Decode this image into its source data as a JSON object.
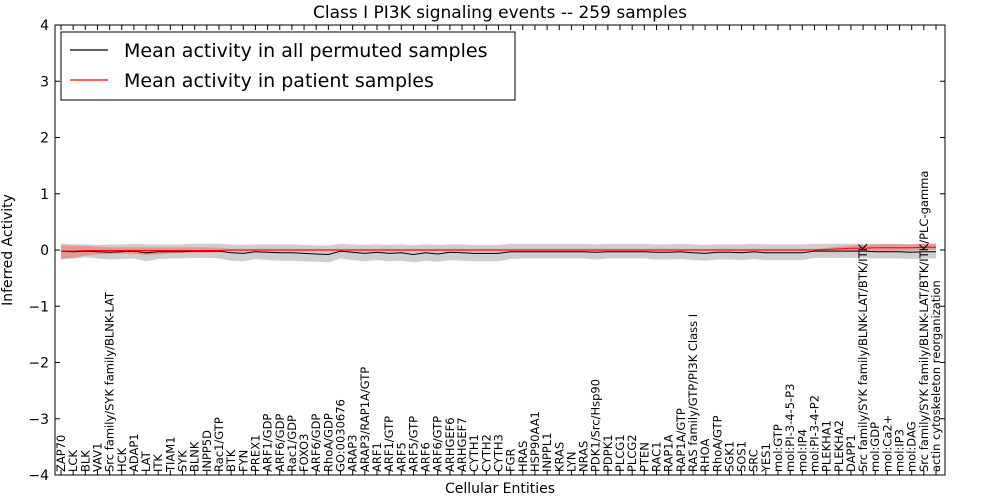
{
  "chart_data": {
    "type": "line",
    "title": "Class I PI3K signaling events -- 259 samples",
    "xlabel": "Cellular Entities",
    "ylabel": "Inferred Activity",
    "ylim": [
      -4,
      4
    ],
    "yticks": [
      -4,
      -3,
      -2,
      -1,
      0,
      1,
      2,
      3,
      4
    ],
    "ytick_labels": [
      "−4",
      "−3",
      "−2",
      "−1",
      "0",
      "1",
      "2",
      "3",
      "4"
    ],
    "grid": false,
    "legend_position": "top-left",
    "categories": [
      "ZAP70",
      "LCK",
      "BLK",
      "VAV1",
      "Src family/SYK family/BLNK-LAT",
      "HCK",
      "ADAP1",
      "LAT",
      "ITK",
      "TIAM1",
      "SYK",
      "BLNK",
      "INPP5D",
      "Rac1/GTP",
      "BTK",
      "FYN",
      "PREX1",
      "ARF1/GDP",
      "ARF6/GDP",
      "Rac1/GDP",
      "FOXO3",
      "ARF6/GDP",
      "RhoA/GDP",
      "GO:0030676",
      "ARAP3",
      "ARAP3/RAP1A/GTP",
      "ARF1",
      "ARF1/GTP",
      "ARF5",
      "ARF5/GTP",
      "ARF6",
      "ARF6/GTP",
      "ARHGEF6",
      "ARHGEF7",
      "CYTH1",
      "CYTH2",
      "CYTH3",
      "FGR",
      "HRAS",
      "HSP90AA1",
      "INPPL1",
      "KRAS",
      "LYN",
      "NRAS",
      "PDK1/Src/Hsp90",
      "PDPK1",
      "PLCG1",
      "PLCG2",
      "PTEN",
      "RAC1",
      "RAP1A",
      "RAP1A/GTP",
      "RAS family/GTP/PI3K Class I",
      "RHOA",
      "RhoA/GTP",
      "SGK1",
      "SOS1",
      "SRC",
      "YES1",
      "mol:GTP",
      "mol:PI-3-4-5-P3",
      "mol:IP4",
      "mol:PI-3-4-P2",
      "PLEKHA1",
      "PLEKHA2",
      "DAPP1",
      "Src family/SYK family/BLNK-LAT/BTK/ITK",
      "mol:GDP",
      "mol:Ca2+",
      "mol:IP3",
      "mol:DAG",
      "Src family/SYK family/BLNK-LAT/BTK/ITK/PLC-gamma",
      "actin cytoskeleton reorganization"
    ],
    "series": [
      {
        "name": "Mean activity in all permuted samples",
        "color": "#000000",
        "band_color": "#b3b3b3",
        "values": [
          -0.02,
          -0.03,
          -0.02,
          -0.03,
          -0.04,
          -0.03,
          -0.02,
          -0.05,
          -0.03,
          -0.03,
          -0.03,
          -0.02,
          -0.02,
          -0.02,
          -0.05,
          -0.06,
          -0.03,
          -0.04,
          -0.05,
          -0.05,
          -0.06,
          -0.07,
          -0.08,
          -0.02,
          -0.04,
          -0.06,
          -0.04,
          -0.06,
          -0.05,
          -0.08,
          -0.05,
          -0.07,
          -0.04,
          -0.05,
          -0.06,
          -0.06,
          -0.06,
          -0.03,
          -0.03,
          -0.03,
          -0.03,
          -0.03,
          -0.03,
          -0.03,
          -0.04,
          -0.03,
          -0.03,
          -0.03,
          -0.03,
          -0.04,
          -0.04,
          -0.03,
          -0.05,
          -0.06,
          -0.04,
          -0.04,
          -0.05,
          -0.03,
          -0.05,
          -0.05,
          -0.05,
          -0.05,
          -0.02,
          -0.02,
          -0.02,
          -0.02,
          -0.02,
          -0.03,
          -0.03,
          -0.03,
          -0.04,
          -0.03,
          -0.03
        ],
        "lower": [
          -0.16,
          -0.15,
          -0.13,
          -0.15,
          -0.17,
          -0.16,
          -0.15,
          -0.2,
          -0.16,
          -0.15,
          -0.15,
          -0.14,
          -0.14,
          -0.15,
          -0.19,
          -0.2,
          -0.16,
          -0.18,
          -0.19,
          -0.19,
          -0.2,
          -0.21,
          -0.22,
          -0.15,
          -0.18,
          -0.2,
          -0.18,
          -0.2,
          -0.19,
          -0.22,
          -0.19,
          -0.21,
          -0.18,
          -0.19,
          -0.2,
          -0.2,
          -0.2,
          -0.16,
          -0.15,
          -0.15,
          -0.15,
          -0.15,
          -0.15,
          -0.15,
          -0.17,
          -0.15,
          -0.15,
          -0.15,
          -0.15,
          -0.17,
          -0.17,
          -0.16,
          -0.18,
          -0.19,
          -0.17,
          -0.17,
          -0.18,
          -0.16,
          -0.18,
          -0.18,
          -0.18,
          -0.18,
          -0.14,
          -0.14,
          -0.14,
          -0.14,
          -0.14,
          -0.15,
          -0.15,
          -0.15,
          -0.16,
          -0.15,
          -0.15
        ],
        "upper": [
          0.12,
          0.1,
          0.1,
          0.09,
          0.1,
          0.1,
          0.11,
          0.1,
          0.1,
          0.1,
          0.1,
          0.11,
          0.11,
          0.11,
          0.1,
          0.09,
          0.1,
          0.1,
          0.1,
          0.1,
          0.09,
          0.08,
          0.08,
          0.11,
          0.1,
          0.09,
          0.1,
          0.09,
          0.1,
          0.08,
          0.1,
          0.09,
          0.1,
          0.1,
          0.09,
          0.09,
          0.09,
          0.11,
          0.11,
          0.11,
          0.11,
          0.11,
          0.11,
          0.11,
          0.1,
          0.11,
          0.11,
          0.11,
          0.11,
          0.1,
          0.1,
          0.11,
          0.1,
          0.09,
          0.1,
          0.1,
          0.1,
          0.11,
          0.1,
          0.1,
          0.1,
          0.1,
          0.11,
          0.11,
          0.11,
          0.11,
          0.11,
          0.11,
          0.11,
          0.11,
          0.1,
          0.11,
          0.11
        ]
      },
      {
        "name": "Mean activity in patient samples",
        "color": "#ff0000",
        "band_color": "#f08080",
        "values": [
          -0.02,
          -0.02,
          -0.01,
          -0.01,
          -0.01,
          -0.01,
          -0.01,
          -0.01,
          -0.01,
          -0.01,
          -0.01,
          -0.01,
          -0.01,
          -0.01,
          0,
          0,
          0,
          0,
          0,
          0,
          0,
          0,
          0,
          0,
          0,
          0,
          0,
          0,
          0,
          0,
          0,
          0,
          0,
          0,
          0,
          0,
          0,
          0,
          0,
          0,
          0,
          0,
          0,
          0,
          0,
          0,
          0,
          0,
          0,
          0,
          0,
          0,
          0,
          0,
          0,
          0,
          0,
          0,
          0,
          0,
          0,
          0,
          0,
          0.01,
          0.02,
          0.03,
          0.03,
          0.04,
          0.04,
          0.04,
          0.04,
          0.05,
          0.05
        ],
        "lower": [
          -0.16,
          -0.14,
          -0.1,
          -0.08,
          -0.07,
          -0.06,
          -0.07,
          -0.09,
          -0.08,
          -0.06,
          -0.05,
          -0.05,
          -0.05,
          -0.04,
          -0.02,
          -0.02,
          -0.02,
          -0.02,
          -0.02,
          -0.02,
          -0.02,
          -0.02,
          -0.02,
          -0.02,
          -0.02,
          -0.02,
          -0.02,
          -0.02,
          -0.02,
          -0.02,
          -0.02,
          -0.02,
          -0.02,
          -0.02,
          -0.02,
          -0.02,
          -0.02,
          -0.02,
          -0.02,
          -0.02,
          -0.02,
          -0.02,
          -0.02,
          -0.02,
          -0.02,
          -0.02,
          -0.02,
          -0.02,
          -0.02,
          -0.02,
          -0.02,
          -0.02,
          -0.02,
          -0.02,
          -0.02,
          -0.02,
          -0.02,
          -0.02,
          -0.02,
          -0.02,
          -0.02,
          -0.02,
          -0.02,
          -0.02,
          -0.02,
          -0.02,
          -0.02,
          -0.02,
          -0.02,
          -0.01,
          -0.01,
          0,
          0
        ],
        "upper": [
          0.08,
          0.08,
          0.07,
          0.06,
          0.05,
          0.05,
          0.05,
          0.05,
          0.05,
          0.05,
          0.05,
          0.05,
          0.05,
          0.04,
          0.02,
          0.02,
          0.02,
          0.02,
          0.02,
          0.02,
          0.02,
          0.02,
          0.02,
          0.02,
          0.02,
          0.02,
          0.02,
          0.02,
          0.02,
          0.02,
          0.02,
          0.02,
          0.02,
          0.02,
          0.02,
          0.02,
          0.02,
          0.02,
          0.02,
          0.02,
          0.02,
          0.02,
          0.02,
          0.02,
          0.02,
          0.02,
          0.02,
          0.02,
          0.02,
          0.02,
          0.02,
          0.02,
          0.02,
          0.02,
          0.02,
          0.02,
          0.02,
          0.02,
          0.02,
          0.02,
          0.02,
          0.02,
          0.02,
          0.04,
          0.06,
          0.08,
          0.09,
          0.1,
          0.1,
          0.1,
          0.1,
          0.11,
          0.11
        ]
      }
    ]
  }
}
